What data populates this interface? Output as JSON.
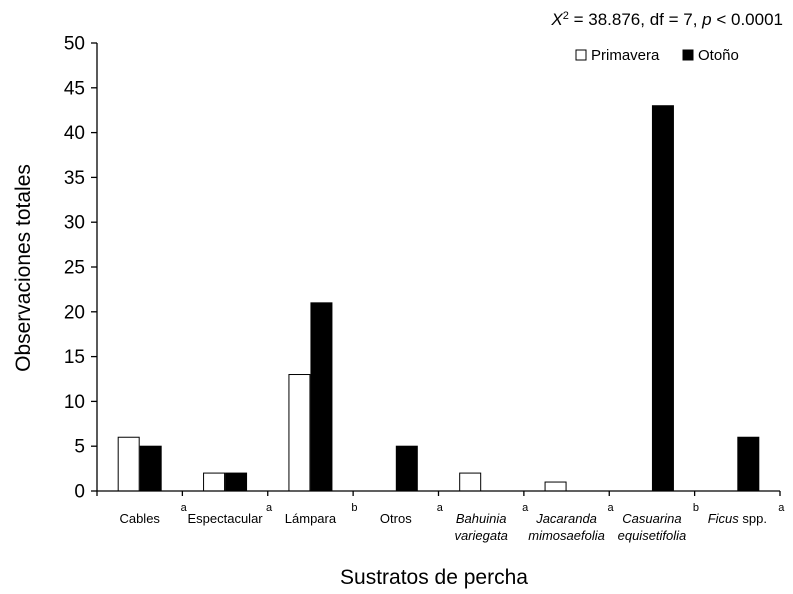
{
  "chart_data": {
    "type": "bar",
    "annotation": {
      "chi": "X",
      "chi_sup": "2",
      "rest": " = 38.876, df = 7, ",
      "p": "p",
      "p_rest": " < 0.0001"
    },
    "xlabel": "Sustratos de percha",
    "ylabel": "Observaciones totales",
    "ylim": [
      0,
      50
    ],
    "yticks": [
      0,
      5,
      10,
      15,
      20,
      25,
      30,
      35,
      40,
      45,
      50
    ],
    "grid": false,
    "legend_position": "top-right",
    "categories": [
      {
        "lines": [
          [
            {
              "text": "Cables",
              "italic": false
            }
          ]
        ],
        "sup": "a"
      },
      {
        "lines": [
          [
            {
              "text": "Espectacular",
              "italic": false
            }
          ]
        ],
        "sup": "a"
      },
      {
        "lines": [
          [
            {
              "text": "Lámpara",
              "italic": false
            }
          ]
        ],
        "sup": "b"
      },
      {
        "lines": [
          [
            {
              "text": "Otros",
              "italic": false
            }
          ]
        ],
        "sup": "a"
      },
      {
        "lines": [
          [
            {
              "text": "Bahuinia",
              "italic": true
            }
          ],
          [
            {
              "text": "variegata",
              "italic": true
            }
          ]
        ],
        "sup": "a"
      },
      {
        "lines": [
          [
            {
              "text": "Jacaranda",
              "italic": true
            }
          ],
          [
            {
              "text": "mimosaefolia",
              "italic": true
            }
          ]
        ],
        "sup": "a"
      },
      {
        "lines": [
          [
            {
              "text": "Casuarina",
              "italic": true
            }
          ],
          [
            {
              "text": "equisetifolia",
              "italic": true
            }
          ]
        ],
        "sup": "b"
      },
      {
        "lines": [
          [
            {
              "text": "Ficus",
              "italic": true
            },
            {
              "text": " spp.",
              "italic": false
            }
          ]
        ],
        "sup": "a"
      }
    ],
    "series": [
      {
        "name": "Primavera",
        "fill": "#ffffff",
        "values": [
          6,
          2,
          13,
          0,
          2,
          1,
          0,
          0
        ]
      },
      {
        "name": "Otoño",
        "fill": "#000000",
        "values": [
          5,
          2,
          21,
          5,
          0,
          0,
          43,
          6
        ]
      }
    ]
  }
}
